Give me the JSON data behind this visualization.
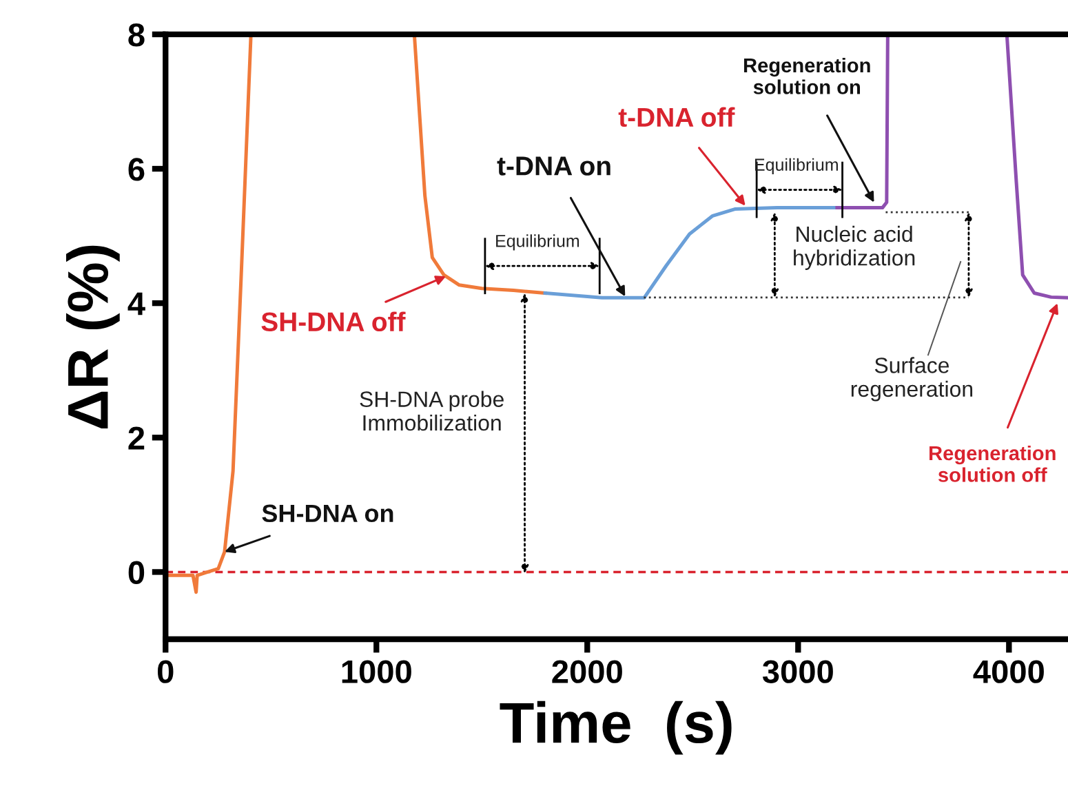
{
  "chart_data": {
    "type": "line",
    "xlabel": "Time  (s)",
    "ylabel": "ΔR (%)",
    "xlim": [
      0,
      4280
    ],
    "ylim": [
      -1,
      8
    ],
    "xticks": [
      0,
      1000,
      2000,
      3000,
      4000
    ],
    "yticks": [
      0,
      2,
      4,
      6,
      8
    ],
    "grid": false,
    "legend": false,
    "marker": "none",
    "line_style": "solid",
    "series": [
      {
        "color": "#f07a3a",
        "x": [
          0,
          60,
          130,
          145,
          150,
          200,
          250,
          280,
          320,
          360,
          405,
          null,
          1180,
          1230,
          1265,
          1320,
          1393,
          1500,
          1650,
          1800
        ],
        "values": [
          -0.05,
          -0.05,
          -0.05,
          -0.3,
          -0.05,
          0,
          0.05,
          0.3,
          1.5,
          4.5,
          8,
          null,
          8,
          5.6,
          4.68,
          4.42,
          4.27,
          4.22,
          4.19,
          4.15
        ]
      },
      {
        "color": "#6a9fd8",
        "x": [
          1800,
          2070,
          2270,
          2375,
          2485,
          2595,
          2700,
          2900,
          3185
        ],
        "values": [
          4.15,
          4.08,
          4.08,
          4.56,
          5.03,
          5.3,
          5.4,
          5.42,
          5.42
        ]
      },
      {
        "color": "#8e4fb0",
        "x": [
          3185,
          3400,
          3420,
          3425,
          null,
          3990,
          4035,
          4065,
          4120,
          4200,
          4280
        ],
        "values": [
          5.42,
          5.42,
          5.5,
          8,
          null,
          8,
          5.8,
          4.42,
          4.15,
          4.09,
          4.08
        ]
      }
    ],
    "ref_lines": [
      {
        "axis": "y",
        "value": 0,
        "color": "#d9232e",
        "line_style": "dashed"
      }
    ],
    "annotations": [
      {
        "text": "SH-DNA on",
        "x": 280,
        "y": 0.3
      },
      {
        "text": "SH-DNA off",
        "x": 1330,
        "y": 4.4
      },
      {
        "text": "t-DNA on",
        "x": 2180,
        "y": 4.1
      },
      {
        "text": "t-DNA off",
        "x": 2750,
        "y": 5.45
      },
      {
        "text": "Regeneration\nsolution on",
        "x": 3360,
        "y": 5.5
      },
      {
        "text": "Regeneration\nsolution off",
        "x": 4230,
        "y": 4.0
      },
      "Surface\nregeneration",
      "SH-DNA probe\nImmobilization",
      "Nucleic acid\nhybridization",
      "Equilibrium",
      "Equilibrium"
    ]
  }
}
